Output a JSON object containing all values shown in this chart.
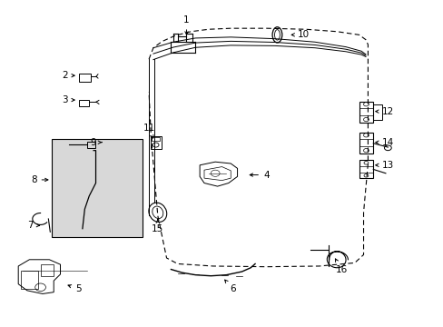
{
  "background_color": "#ffffff",
  "figsize": [
    4.89,
    3.6
  ],
  "dpi": 100,
  "label_positions": {
    "1": [
      0.42,
      0.94,
      0.42,
      0.885
    ],
    "2": [
      0.145,
      0.77,
      0.175,
      0.77
    ],
    "3": [
      0.145,
      0.695,
      0.175,
      0.695
    ],
    "4": [
      0.6,
      0.465,
      0.555,
      0.465
    ],
    "5": [
      0.175,
      0.115,
      0.145,
      0.13
    ],
    "6": [
      0.525,
      0.115,
      0.505,
      0.145
    ],
    "7": [
      0.068,
      0.31,
      0.09,
      0.31
    ],
    "8": [
      0.075,
      0.45,
      0.115,
      0.45
    ],
    "9": [
      0.21,
      0.565,
      0.235,
      0.565
    ],
    "10": [
      0.685,
      0.895,
      0.655,
      0.895
    ],
    "11": [
      0.335,
      0.61,
      0.345,
      0.575
    ],
    "12": [
      0.875,
      0.66,
      0.845,
      0.66
    ],
    "13": [
      0.875,
      0.495,
      0.845,
      0.495
    ],
    "14": [
      0.875,
      0.565,
      0.845,
      0.565
    ],
    "15": [
      0.355,
      0.3,
      0.355,
      0.33
    ],
    "16": [
      0.77,
      0.175,
      0.755,
      0.21
    ]
  }
}
